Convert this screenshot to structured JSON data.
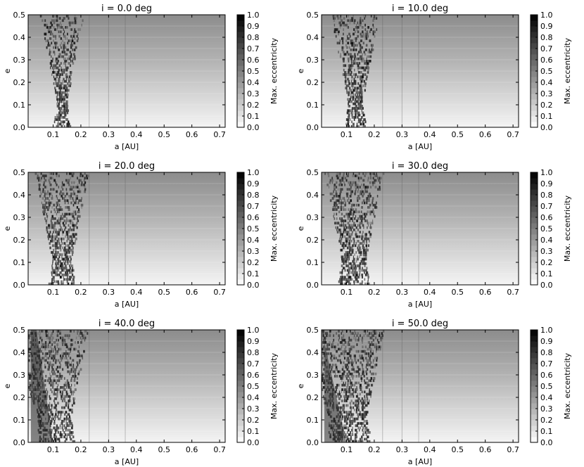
{
  "figure": {
    "background": "#ffffff"
  },
  "chart_data": {
    "type": "heatmap",
    "xlabel": "a [AU]",
    "ylabel": "e",
    "xlim": [
      0.01,
      0.72
    ],
    "ylim": [
      0.0,
      0.5
    ],
    "xticks": [
      0.1,
      0.2,
      0.3,
      0.4,
      0.5,
      0.6,
      0.7
    ],
    "xtick_labels": [
      "0.1",
      "0.2",
      "0.3",
      "0.4",
      "0.5",
      "0.6",
      "0.7"
    ],
    "yticks": [
      0.0,
      0.1,
      0.2,
      0.3,
      0.4,
      0.5
    ],
    "ytick_labels": [
      "0.0",
      "0.1",
      "0.2",
      "0.3",
      "0.4",
      "0.5"
    ],
    "colorbar": {
      "label": "Max. eccentricity",
      "range": [
        0.0,
        1.0
      ],
      "ticks": [
        0.0,
        0.1,
        0.2,
        0.3,
        0.4,
        0.5,
        0.6,
        0.7,
        0.8,
        0.9,
        1.0
      ],
      "tick_labels": [
        "0.0",
        "0.1",
        "0.2",
        "0.3",
        "0.4",
        "0.5",
        "0.6",
        "0.7",
        "0.8",
        "0.9",
        "1.0"
      ],
      "colormap": "gray_r"
    },
    "panels": [
      {
        "title": "i = 0.0 deg",
        "inclination": 0,
        "unstable_a": [
          0.08,
          0.22
        ]
      },
      {
        "title": "i = 10.0 deg",
        "inclination": 10,
        "unstable_a": [
          0.08,
          0.22
        ]
      },
      {
        "title": "i = 20.0 deg",
        "inclination": 20,
        "unstable_a": [
          0.07,
          0.23
        ]
      },
      {
        "title": "i = 30.0 deg",
        "inclination": 30,
        "unstable_a": [
          0.06,
          0.23
        ]
      },
      {
        "title": "i = 40.0 deg",
        "inclination": 40,
        "unstable_a": [
          0.02,
          0.24
        ]
      },
      {
        "title": "i = 50.0 deg",
        "inclination": 50,
        "unstable_a": [
          0.02,
          0.24
        ]
      }
    ]
  }
}
